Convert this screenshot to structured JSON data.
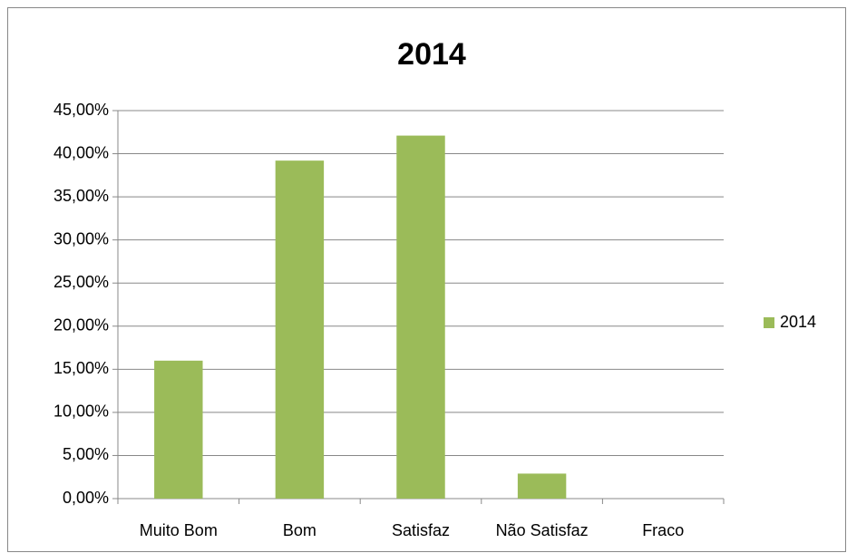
{
  "chart_data": {
    "type": "bar",
    "title": "2014",
    "categories": [
      "Muito Bom",
      "Bom",
      "Satisfaz",
      "Não Satisfaz",
      "Fraco"
    ],
    "series": [
      {
        "name": "2014",
        "color": "#9bbb59",
        "values": [
          16,
          39.2,
          42.1,
          2.9,
          0
        ]
      }
    ],
    "ylim": [
      0,
      45
    ],
    "yticks": [
      {
        "value": 0,
        "label": "0,00%"
      },
      {
        "value": 5,
        "label": "5,00%"
      },
      {
        "value": 10,
        "label": "10,00%"
      },
      {
        "value": 15,
        "label": "15,00%"
      },
      {
        "value": 20,
        "label": "20,00%"
      },
      {
        "value": 25,
        "label": "25,00%"
      },
      {
        "value": 30,
        "label": "30,00%"
      },
      {
        "value": 35,
        "label": "35,00%"
      },
      {
        "value": 40,
        "label": "40,00%"
      },
      {
        "value": 45,
        "label": "45,00%"
      }
    ],
    "grid": true,
    "legend": "right"
  }
}
